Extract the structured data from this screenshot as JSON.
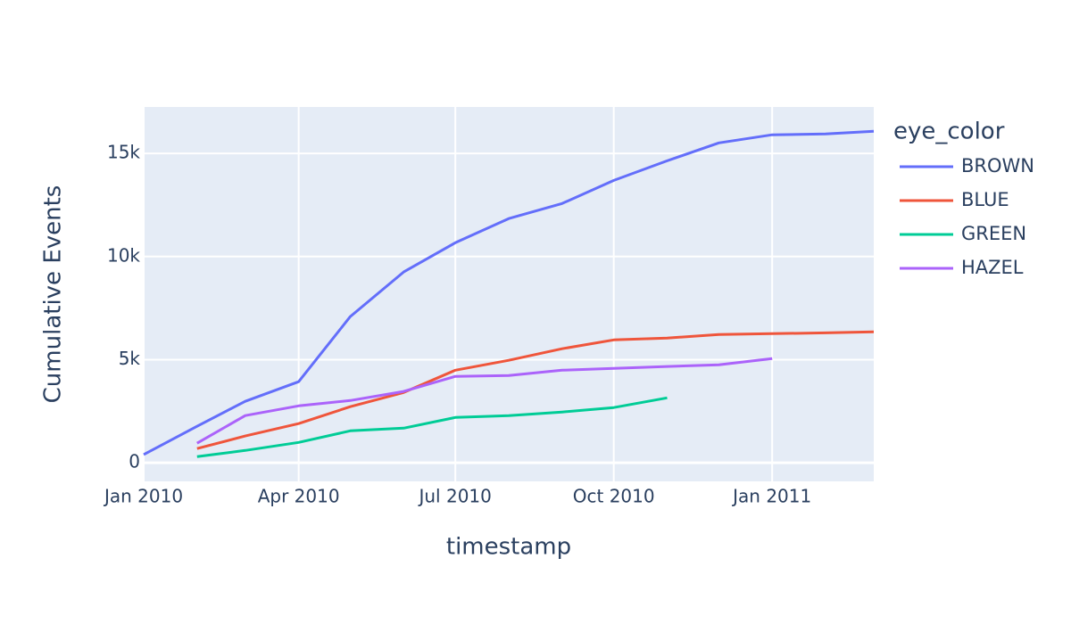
{
  "chart_data": {
    "type": "line",
    "x_label": "timestamp",
    "y_label": "Cumulative Events",
    "legend_title": "eye_color",
    "legend_position": "right",
    "grid": true,
    "background": "#e5ecf6",
    "x": [
      "2010-01",
      "2010-02",
      "2010-03",
      "2010-04",
      "2010-05",
      "2010-06",
      "2010-07",
      "2010-08",
      "2010-09",
      "2010-10",
      "2010-11",
      "2010-12",
      "2011-01",
      "2011-02",
      "2011-03"
    ],
    "xlim": [
      "2010-01",
      "2011-03"
    ],
    "xticks": [
      {
        "value": "2010-01",
        "label": "Jan 2010"
      },
      {
        "value": "2010-04",
        "label": "Apr 2010"
      },
      {
        "value": "2010-07",
        "label": "Jul 2010"
      },
      {
        "value": "2010-10",
        "label": "Oct 2010"
      },
      {
        "value": "2011-01",
        "label": "Jan 2011"
      }
    ],
    "ylim": [
      -900,
      17250
    ],
    "yticks": [
      0,
      {
        "value": 5000,
        "label": "5k"
      },
      {
        "value": 10000,
        "label": "10k"
      },
      {
        "value": 15000,
        "label": "15k"
      }
    ],
    "series": [
      {
        "name": "BROWN",
        "color": "#636efa",
        "values": [
          400,
          1770,
          2980,
          3930,
          7090,
          9250,
          10670,
          11840,
          12570,
          13690,
          14640,
          15510,
          15900,
          15940,
          16070
        ]
      },
      {
        "name": "BLUE",
        "color": "#ef553b",
        "values": [
          null,
          690,
          1300,
          1900,
          2720,
          3410,
          4490,
          4970,
          5530,
          5960,
          6050,
          6220,
          6260,
          6300,
          6350
        ]
      },
      {
        "name": "GREEN",
        "color": "#00cc96",
        "values": [
          null,
          300,
          600,
          990,
          1550,
          1680,
          2200,
          2290,
          2460,
          2680,
          3150,
          null,
          null,
          null,
          null
        ]
      },
      {
        "name": "HAZEL",
        "color": "#ab63fa",
        "values": [
          null,
          950,
          2290,
          2760,
          3020,
          3460,
          4190,
          4230,
          4490,
          4580,
          4670,
          4750,
          5050,
          null,
          null
        ]
      }
    ]
  }
}
